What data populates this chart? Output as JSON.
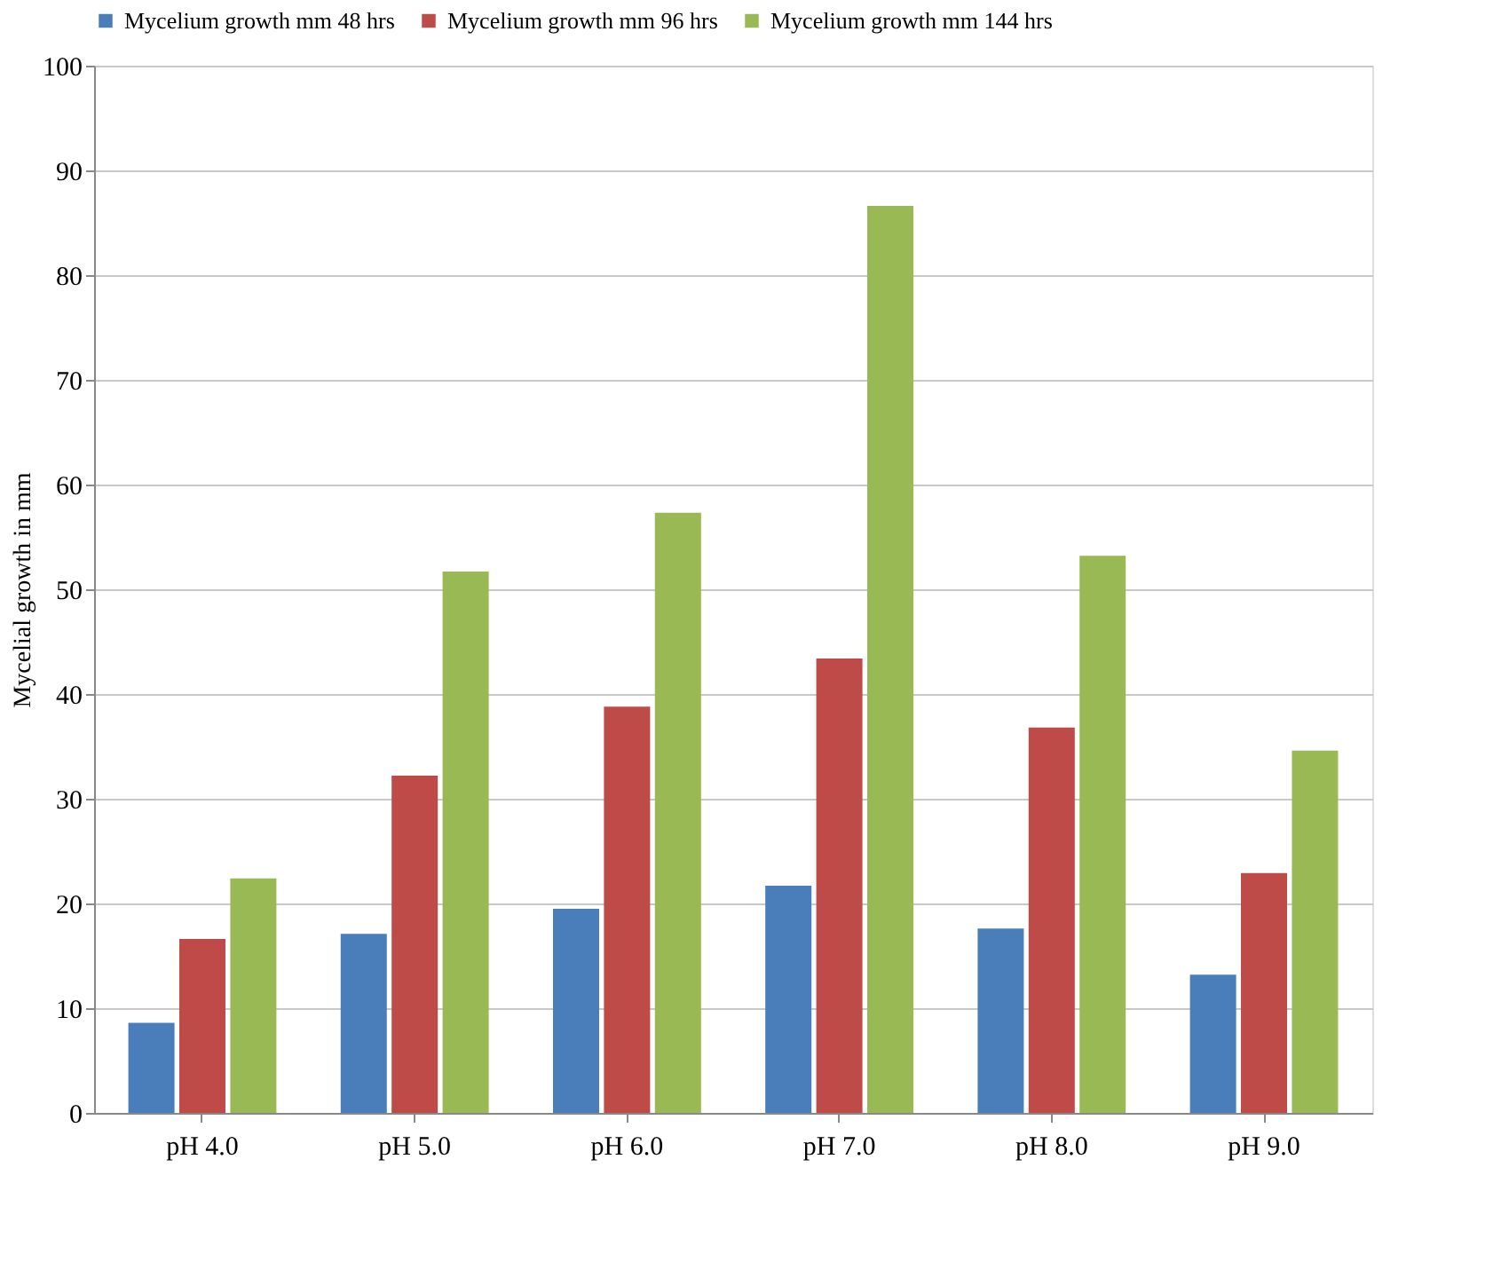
{
  "chart_data": {
    "type": "bar",
    "ylabel": "Mycelial growth in mm",
    "categories": [
      "pH 4.0",
      "pH 5.0",
      "pH 6.0",
      "pH 7.0",
      "pH 8.0",
      "pH 9.0"
    ],
    "series": [
      {
        "name": "Mycelium growth mm 48 hrs",
        "color": "#4a7ebb",
        "values": [
          8.6,
          17.1,
          19.5,
          21.7,
          17.6,
          13.2
        ]
      },
      {
        "name": "Mycelium growth mm 96 hrs",
        "color": "#be4b48",
        "values": [
          16.6,
          32.2,
          38.8,
          43.4,
          36.8,
          22.9
        ]
      },
      {
        "name": "Mycelium growth mm 144 hrs",
        "color": "#98b954",
        "values": [
          22.4,
          51.7,
          57.3,
          86.6,
          53.2,
          34.6
        ]
      }
    ],
    "ylim": [
      0,
      100
    ],
    "yticks": [
      0,
      10,
      20,
      30,
      40,
      50,
      60,
      70,
      80,
      90,
      100
    ],
    "grid": "y",
    "legend": "top"
  }
}
